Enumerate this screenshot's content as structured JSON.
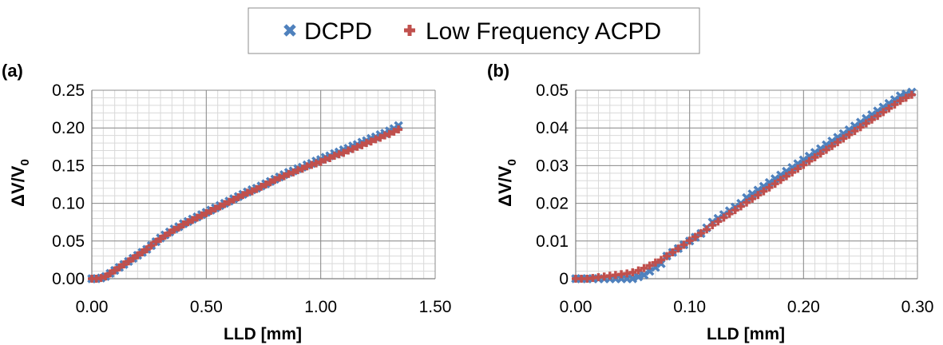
{
  "legend": {
    "entries": [
      {
        "name": "DCPD",
        "color": "#4F81BD",
        "marker": "x-cross"
      },
      {
        "name": "Low Frequency ACPD",
        "color": "#C0504D",
        "marker": "plus"
      }
    ]
  },
  "chart_data": [
    {
      "type": "scatter",
      "panel_label": "(a)",
      "xlabel": "LLD [mm]",
      "ylabel": "ΔV/V0",
      "xlim": [
        0,
        1.5
      ],
      "ylim": [
        0,
        0.25
      ],
      "x_ticks": [
        "0.00",
        "0.50",
        "1.00",
        "1.50"
      ],
      "y_ticks": [
        "0.00",
        "0.05",
        "0.10",
        "0.15",
        "0.20",
        "0.25"
      ],
      "x_minor_step": 0.05,
      "y_minor_step": 0.01,
      "grid": true,
      "series": [
        {
          "name": "DCPD",
          "color": "#4F81BD",
          "marker": "x-cross",
          "x": [
            0.0,
            0.02,
            0.04,
            0.06,
            0.08,
            0.1,
            0.12,
            0.14,
            0.16,
            0.18,
            0.2,
            0.22,
            0.24,
            0.26,
            0.28,
            0.3,
            0.32,
            0.34,
            0.36,
            0.38,
            0.4,
            0.42,
            0.44,
            0.46,
            0.48,
            0.5,
            0.52,
            0.54,
            0.56,
            0.58,
            0.6,
            0.62,
            0.64,
            0.66,
            0.68,
            0.7,
            0.72,
            0.74,
            0.76,
            0.78,
            0.8,
            0.82,
            0.84,
            0.86,
            0.88,
            0.9,
            0.92,
            0.94,
            0.96,
            0.98,
            1.0,
            1.02,
            1.04,
            1.06,
            1.08,
            1.1,
            1.12,
            1.14,
            1.16,
            1.18,
            1.2,
            1.22,
            1.24,
            1.26,
            1.28,
            1.3,
            1.32,
            1.34
          ],
          "y": [
            0.0,
            0.0,
            0.001,
            0.003,
            0.007,
            0.011,
            0.015,
            0.019,
            0.023,
            0.027,
            0.031,
            0.035,
            0.039,
            0.044,
            0.049,
            0.054,
            0.058,
            0.062,
            0.066,
            0.069,
            0.073,
            0.076,
            0.079,
            0.082,
            0.085,
            0.088,
            0.091,
            0.094,
            0.097,
            0.1,
            0.103,
            0.106,
            0.109,
            0.112,
            0.115,
            0.118,
            0.12,
            0.123,
            0.126,
            0.129,
            0.132,
            0.135,
            0.138,
            0.141,
            0.143,
            0.146,
            0.148,
            0.151,
            0.153,
            0.156,
            0.158,
            0.161,
            0.163,
            0.166,
            0.168,
            0.171,
            0.173,
            0.176,
            0.178,
            0.181,
            0.183,
            0.186,
            0.188,
            0.191,
            0.193,
            0.196,
            0.199,
            0.203
          ]
        },
        {
          "name": "Low Frequency ACPD",
          "color": "#C0504D",
          "marker": "plus",
          "x": [
            0.0,
            0.02,
            0.04,
            0.06,
            0.08,
            0.1,
            0.12,
            0.14,
            0.16,
            0.18,
            0.2,
            0.22,
            0.24,
            0.26,
            0.28,
            0.3,
            0.32,
            0.34,
            0.36,
            0.38,
            0.4,
            0.42,
            0.44,
            0.46,
            0.48,
            0.5,
            0.52,
            0.54,
            0.56,
            0.58,
            0.6,
            0.62,
            0.64,
            0.66,
            0.68,
            0.7,
            0.72,
            0.74,
            0.76,
            0.78,
            0.8,
            0.82,
            0.84,
            0.86,
            0.88,
            0.9,
            0.92,
            0.94,
            0.96,
            0.98,
            1.0,
            1.02,
            1.04,
            1.06,
            1.08,
            1.1,
            1.12,
            1.14,
            1.16,
            1.18,
            1.2,
            1.22,
            1.24,
            1.26,
            1.28,
            1.3,
            1.32,
            1.34
          ],
          "y": [
            0.0,
            0.0,
            0.001,
            0.003,
            0.007,
            0.011,
            0.015,
            0.019,
            0.023,
            0.027,
            0.031,
            0.035,
            0.039,
            0.044,
            0.049,
            0.053,
            0.057,
            0.061,
            0.065,
            0.068,
            0.072,
            0.075,
            0.078,
            0.081,
            0.084,
            0.087,
            0.09,
            0.093,
            0.096,
            0.099,
            0.102,
            0.105,
            0.108,
            0.111,
            0.114,
            0.116,
            0.119,
            0.122,
            0.125,
            0.128,
            0.131,
            0.134,
            0.136,
            0.139,
            0.141,
            0.144,
            0.146,
            0.149,
            0.151,
            0.153,
            0.155,
            0.158,
            0.16,
            0.163,
            0.165,
            0.167,
            0.17,
            0.172,
            0.175,
            0.177,
            0.18,
            0.182,
            0.185,
            0.187,
            0.19,
            0.192,
            0.195,
            0.198
          ]
        }
      ]
    },
    {
      "type": "scatter",
      "panel_label": "(b)",
      "xlabel": "LLD [mm]",
      "ylabel": "ΔV/V0",
      "xlim": [
        0,
        0.3
      ],
      "ylim": [
        0,
        0.05
      ],
      "x_ticks": [
        "0.00",
        "0.10",
        "0.20",
        "0.30"
      ],
      "y_ticks": [
        "0",
        "0.01",
        "0.02",
        "0.03",
        "0.04",
        "0.05"
      ],
      "x_minor_step": 0.01,
      "y_minor_step": 0.002,
      "grid": true,
      "series": [
        {
          "name": "DCPD",
          "color": "#4F81BD",
          "marker": "x-cross",
          "x": [
            0.0,
            0.005,
            0.01,
            0.015,
            0.02,
            0.025,
            0.03,
            0.035,
            0.04,
            0.045,
            0.05,
            0.055,
            0.06,
            0.065,
            0.07,
            0.075,
            0.08,
            0.085,
            0.09,
            0.095,
            0.1,
            0.105,
            0.11,
            0.115,
            0.12,
            0.125,
            0.13,
            0.135,
            0.14,
            0.145,
            0.15,
            0.155,
            0.16,
            0.165,
            0.17,
            0.175,
            0.18,
            0.185,
            0.19,
            0.195,
            0.2,
            0.205,
            0.21,
            0.215,
            0.22,
            0.225,
            0.23,
            0.235,
            0.24,
            0.245,
            0.25,
            0.255,
            0.26,
            0.265,
            0.27,
            0.275,
            0.28,
            0.285,
            0.29,
            0.295
          ],
          "y": [
            0.0,
            0.0,
            0.0,
            0.0,
            0.0,
            0.0,
            0.0,
            0.0,
            0.0,
            0.0,
            0.0,
            0.0005,
            0.001,
            0.002,
            0.003,
            0.004,
            0.006,
            0.007,
            0.008,
            0.009,
            0.01,
            0.011,
            0.012,
            0.0135,
            0.015,
            0.016,
            0.017,
            0.018,
            0.019,
            0.02,
            0.0215,
            0.0225,
            0.0235,
            0.0245,
            0.0255,
            0.0265,
            0.0275,
            0.0285,
            0.0295,
            0.0305,
            0.0315,
            0.0325,
            0.0335,
            0.0345,
            0.0355,
            0.0365,
            0.0375,
            0.0385,
            0.0395,
            0.0405,
            0.0415,
            0.0425,
            0.0435,
            0.0445,
            0.0455,
            0.0465,
            0.0475,
            0.0485,
            0.049,
            0.0495
          ]
        },
        {
          "name": "Low Frequency ACPD",
          "color": "#C0504D",
          "marker": "plus",
          "x": [
            0.0,
            0.005,
            0.01,
            0.015,
            0.02,
            0.025,
            0.03,
            0.035,
            0.04,
            0.045,
            0.05,
            0.055,
            0.06,
            0.065,
            0.07,
            0.075,
            0.08,
            0.085,
            0.09,
            0.095,
            0.1,
            0.105,
            0.11,
            0.115,
            0.12,
            0.125,
            0.13,
            0.135,
            0.14,
            0.145,
            0.15,
            0.155,
            0.16,
            0.165,
            0.17,
            0.175,
            0.18,
            0.185,
            0.19,
            0.195,
            0.2,
            0.205,
            0.21,
            0.215,
            0.22,
            0.225,
            0.23,
            0.235,
            0.24,
            0.245,
            0.25,
            0.255,
            0.26,
            0.265,
            0.27,
            0.275,
            0.28,
            0.285,
            0.29,
            0.295
          ],
          "y": [
            0.0,
            0.0,
            0.0,
            0.0002,
            0.0004,
            0.0006,
            0.0008,
            0.001,
            0.0012,
            0.0014,
            0.0017,
            0.0022,
            0.0028,
            0.0035,
            0.0043,
            0.005,
            0.006,
            0.007,
            0.008,
            0.009,
            0.0101,
            0.0111,
            0.0121,
            0.0131,
            0.0142,
            0.0152,
            0.0162,
            0.0172,
            0.0182,
            0.0192,
            0.0202,
            0.0212,
            0.0222,
            0.0232,
            0.0242,
            0.0252,
            0.0262,
            0.0272,
            0.0282,
            0.0292,
            0.0302,
            0.0312,
            0.0322,
            0.0332,
            0.0342,
            0.0352,
            0.0362,
            0.0372,
            0.0382,
            0.0392,
            0.0402,
            0.0412,
            0.0422,
            0.0432,
            0.0442,
            0.0452,
            0.0462,
            0.0472,
            0.048,
            0.0488
          ]
        }
      ]
    }
  ]
}
